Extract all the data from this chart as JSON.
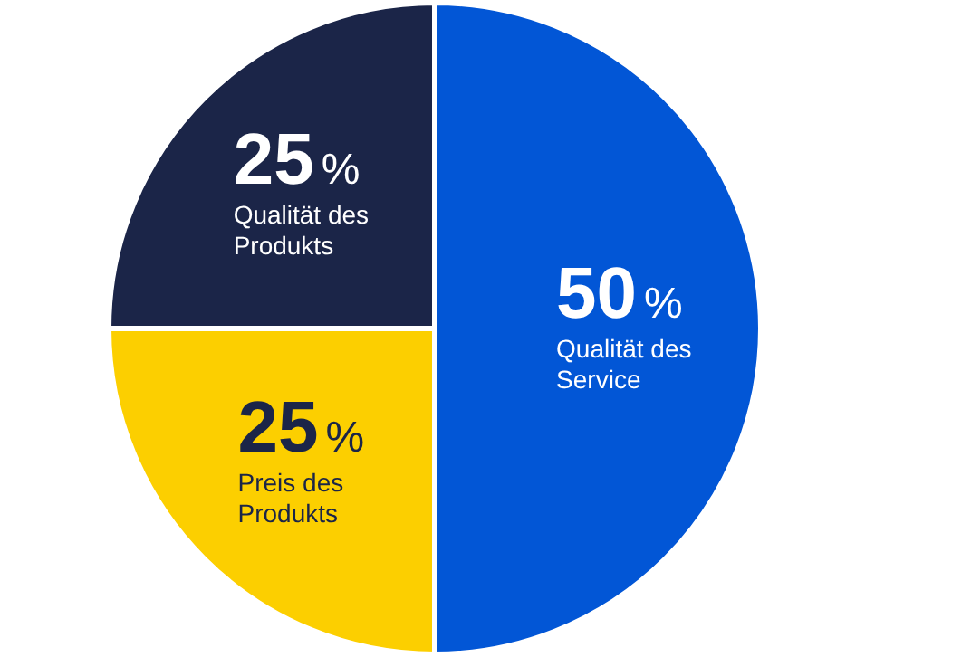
{
  "chart_data": {
    "type": "pie",
    "categories": [
      "Qualität des Service",
      "Preis des Produkts",
      "Qualität des Produkts"
    ],
    "values": [
      50,
      25,
      25
    ],
    "colors": [
      "#0256d6",
      "#fccf00",
      "#1b2548"
    ],
    "value_labels": [
      "50%",
      "25%",
      "25%"
    ]
  }
}
